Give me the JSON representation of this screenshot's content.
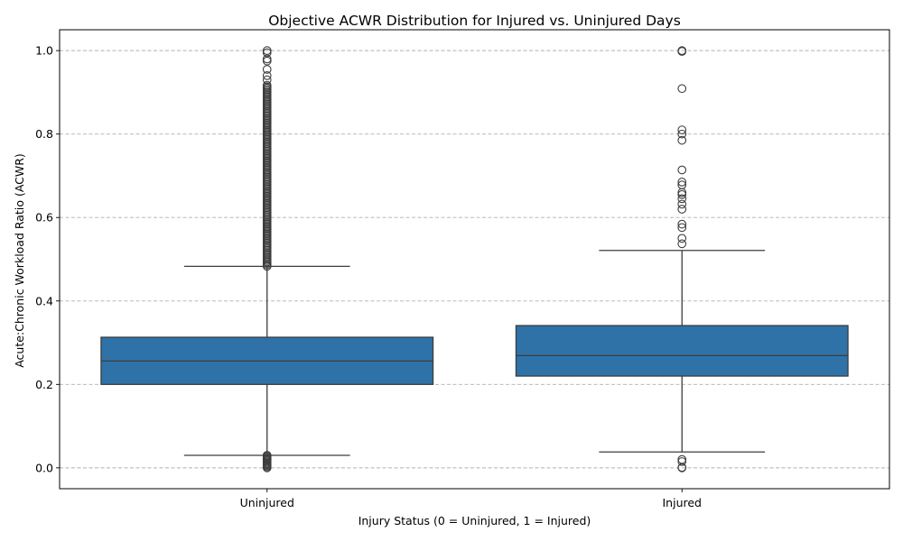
{
  "chart_data": {
    "type": "box",
    "title": "Objective ACWR Distribution for Injured vs. Uninjured Days",
    "xlabel": "Injury Status (0 = Uninjured, 1 = Injured)",
    "ylabel": "Acute:Chronic Workload Ratio (ACWR)",
    "ylim": [
      -0.05,
      1.05
    ],
    "yticks": [
      0.0,
      0.2,
      0.4,
      0.6,
      0.8,
      1.0
    ],
    "ytick_labels": [
      "0.0",
      "0.2",
      "0.4",
      "0.6",
      "0.8",
      "1.0"
    ],
    "grid": "y",
    "color": "#2e72a8",
    "edge_color": "#3d3d3d",
    "categories": [
      "Uninjured",
      "Injured"
    ],
    "boxes": [
      {
        "name": "Uninjured",
        "whisker_low": 0.03,
        "q1": 0.2,
        "median": 0.256,
        "q3": 0.313,
        "whisker_high": 0.483,
        "outliers_high_dense_range": [
          0.483,
          0.92
        ],
        "outliers_high": [
          0.93,
          0.94,
          0.955,
          0.975,
          0.98,
          0.995,
          1.0
        ],
        "outliers_low_dense_range": [
          0.0,
          0.03
        ]
      },
      {
        "name": "Injured",
        "whisker_low": 0.038,
        "q1": 0.22,
        "median": 0.269,
        "q3": 0.341,
        "whisker_high": 0.521,
        "outliers_high": [
          0.537,
          0.55,
          0.576,
          0.584,
          0.62,
          0.632,
          0.645,
          0.655,
          0.66,
          0.678,
          0.685,
          0.714,
          0.785,
          0.8,
          0.81,
          0.909,
          0.998,
          1.0
        ],
        "outliers_low": [
          0.0,
          0.001,
          0.015,
          0.02
        ]
      }
    ]
  }
}
